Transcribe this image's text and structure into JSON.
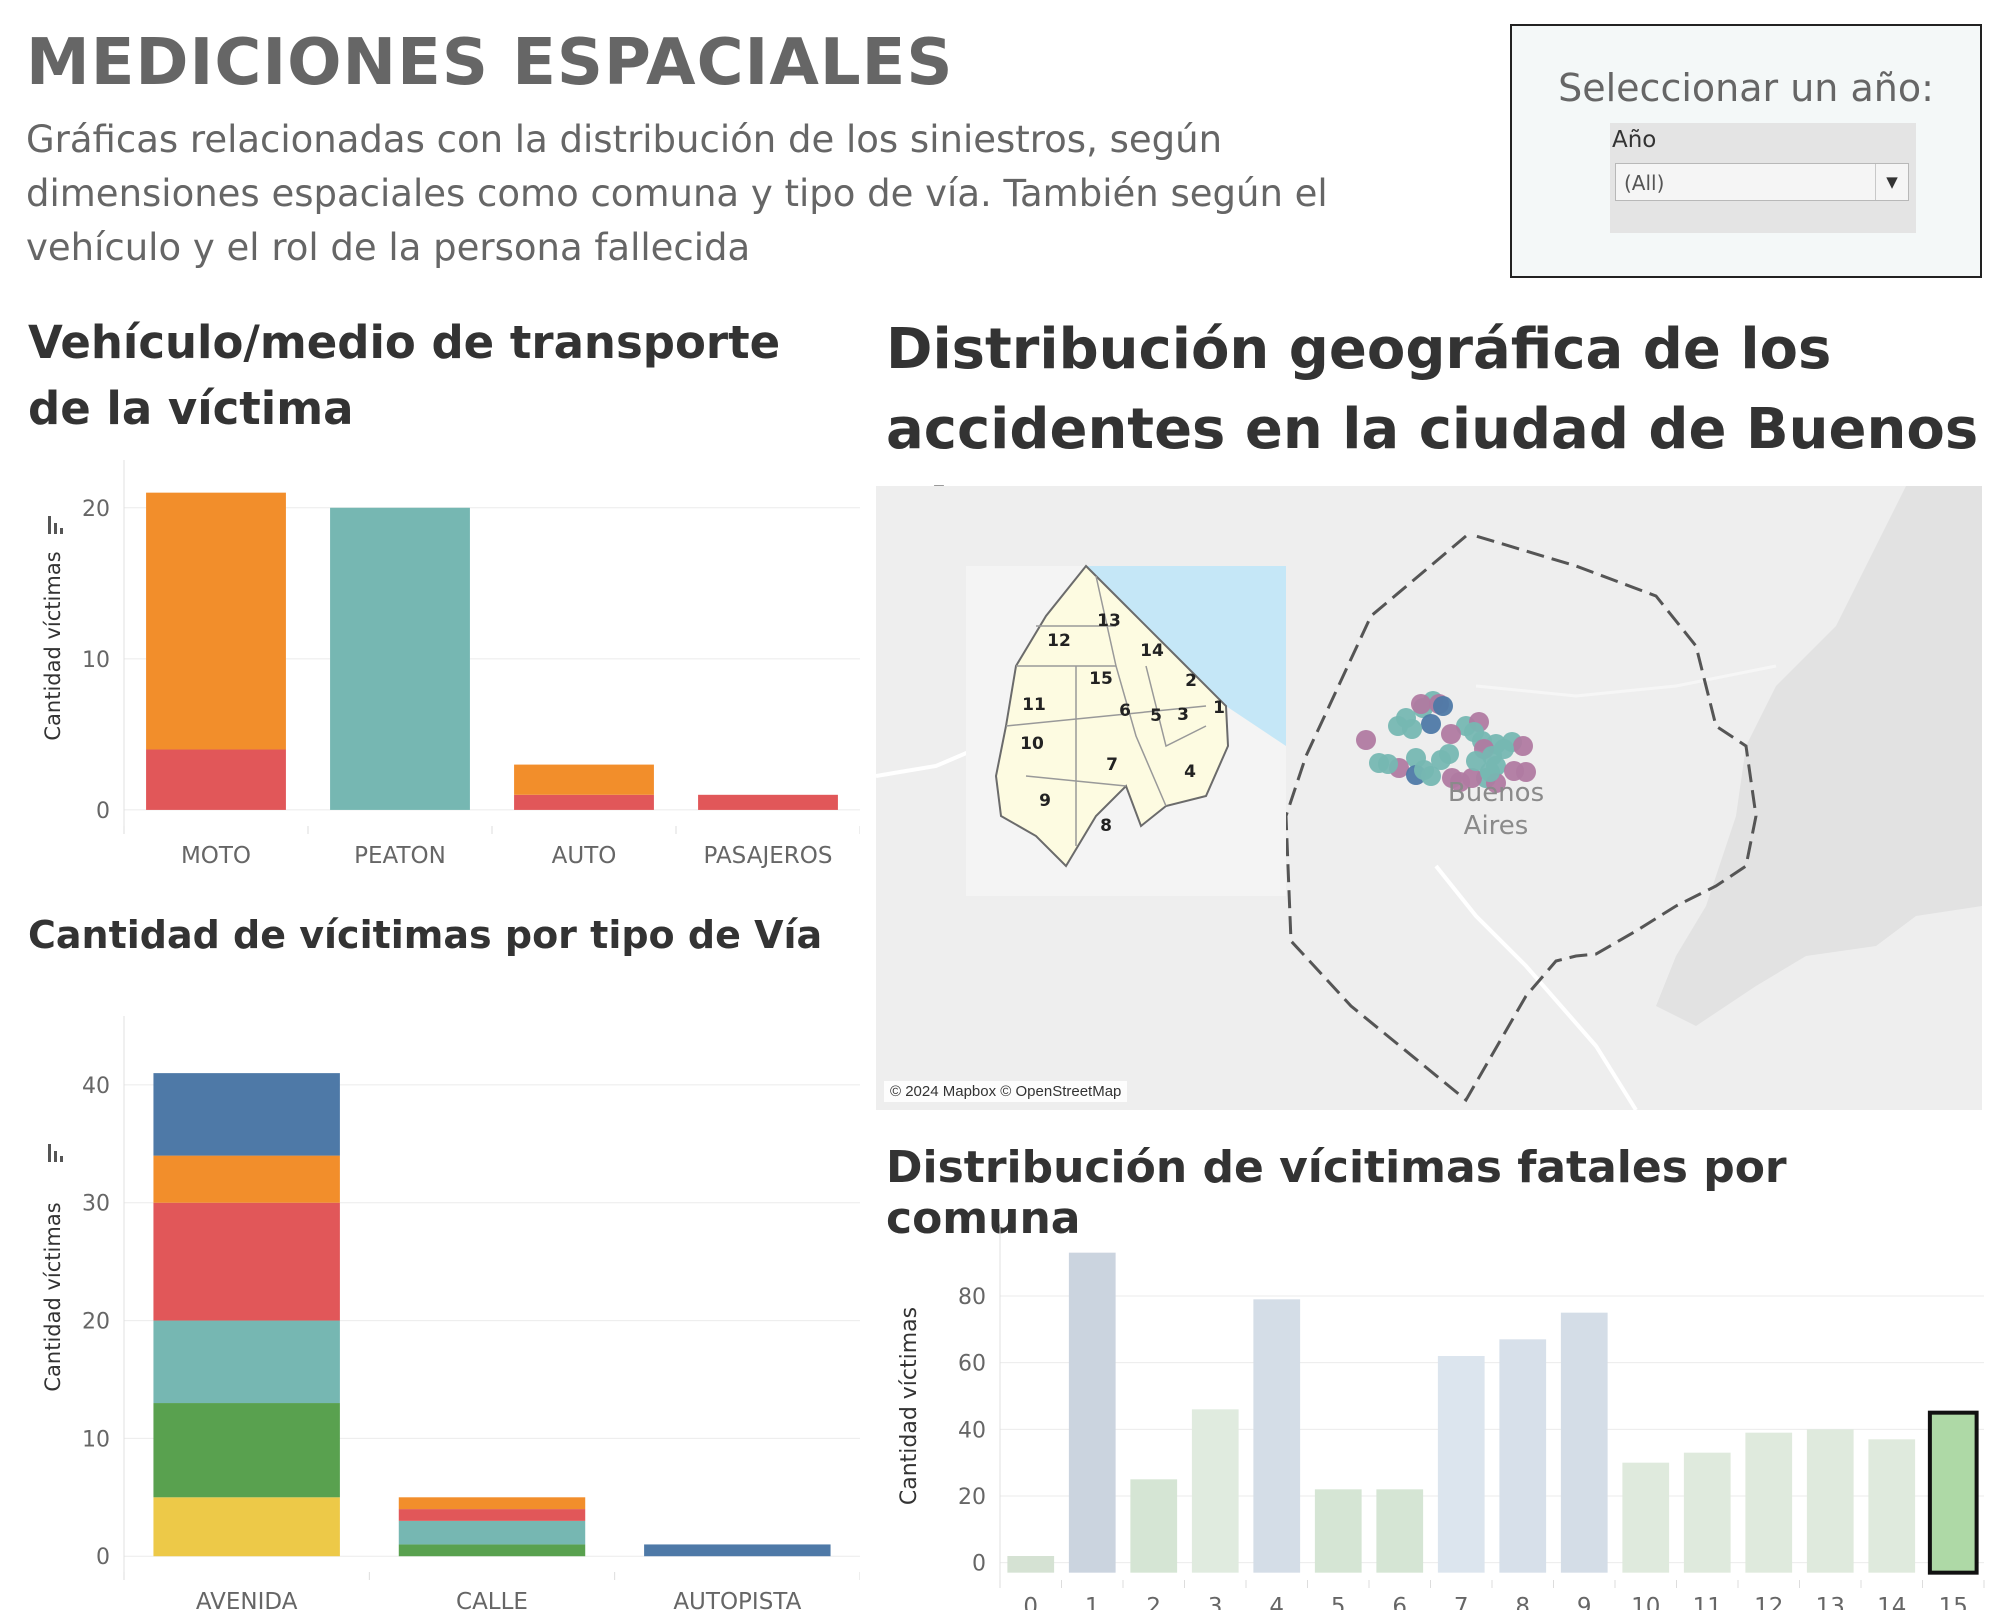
{
  "header": {
    "title": "MEDICIONES ESPACIALES",
    "subtitle": "Gráficas relacionadas con la distribución de los siniestros, según dimensiones espaciales como comuna y tipo de vía. También según el vehículo y el rol de la persona fallecida"
  },
  "filter": {
    "heading": "Seleccionar un año:",
    "label": "Año",
    "selected": "(All)"
  },
  "map": {
    "title": "Distribución geográfica de los accidentes en la ciudad de Buenos Aires",
    "city_label": "Buenos Aires",
    "attribution": "© 2024 Mapbox © OpenStreetMap",
    "inset_comuna_labels": [
      "1",
      "2",
      "3",
      "4",
      "5",
      "6",
      "7",
      "8",
      "9",
      "10",
      "11",
      "12",
      "13",
      "14",
      "15"
    ],
    "colors": {
      "land": "#fdfbe1",
      "water": "#c5e7f7",
      "marker_teal": "#76b7b2",
      "marker_purple": "#b07aa1",
      "marker_blue": "#4e79a7"
    }
  },
  "chart_data": [
    {
      "id": "vehicle",
      "type": "bar",
      "stacked": true,
      "title": "Vehículo/medio de transporte de la víctima",
      "ylabel": "Cantidad víctimas",
      "categories": [
        "MOTO",
        "PEATON",
        "AUTO",
        "PASAJEROS"
      ],
      "yticks": [
        0,
        10,
        20
      ],
      "ylim": [
        -0.8,
        22.5
      ],
      "series": [
        {
          "values": [
            4,
            0,
            1,
            1
          ],
          "color": "#e15759"
        },
        {
          "values": [
            17,
            0,
            2,
            0
          ],
          "color": "#f28e2b"
        },
        {
          "values": [
            0,
            20,
            0,
            0
          ],
          "color": "#76b7b2"
        }
      ]
    },
    {
      "id": "via",
      "type": "bar",
      "stacked": true,
      "title": "Cantidad de vícitimas por tipo de Vía",
      "ylabel": "Cantidad víctimas",
      "categories": [
        "AVENIDA",
        "CALLE",
        "AUTOPISTA"
      ],
      "yticks": [
        0,
        10,
        20,
        30,
        40
      ],
      "ylim": [
        -1,
        45
      ],
      "series": [
        {
          "values": [
            5,
            0,
            0
          ],
          "color": "#edc948"
        },
        {
          "values": [
            8,
            1,
            0
          ],
          "color": "#59a14f"
        },
        {
          "values": [
            7,
            2,
            0
          ],
          "color": "#76b7b2"
        },
        {
          "values": [
            10,
            1,
            0
          ],
          "color": "#e15759"
        },
        {
          "values": [
            4,
            1,
            0
          ],
          "color": "#f28e2b"
        },
        {
          "values": [
            7,
            0,
            1
          ],
          "color": "#4e79a7"
        }
      ]
    },
    {
      "id": "comuna",
      "type": "bar",
      "title": "Distribución de vícitimas fatales por comuna",
      "ylabel": "Cantidad víctimas",
      "categories": [
        "0",
        "1",
        "2",
        "3",
        "4",
        "5",
        "6",
        "7",
        "8",
        "9",
        "10",
        "11",
        "12",
        "13",
        "14",
        "15"
      ],
      "values": [
        2,
        93,
        25,
        46,
        79,
        22,
        22,
        62,
        67,
        75,
        30,
        33,
        39,
        40,
        37,
        45
      ],
      "colors": [
        "#d5e2d3",
        "#cbd4df",
        "#d5e5d4",
        "#e0ebdf",
        "#d4dde7",
        "#d5e5d4",
        "#d5e5d4",
        "#dce5ee",
        "#d7e0ea",
        "#d4dde7",
        "#dfeadd",
        "#dfeadd",
        "#dfeadd",
        "#dfeadd",
        "#dfeadd",
        "#aed9a6"
      ],
      "highlighted": "15",
      "yticks": [
        0,
        20,
        40,
        60,
        80
      ],
      "ylim": [
        -4,
        98
      ]
    }
  ]
}
